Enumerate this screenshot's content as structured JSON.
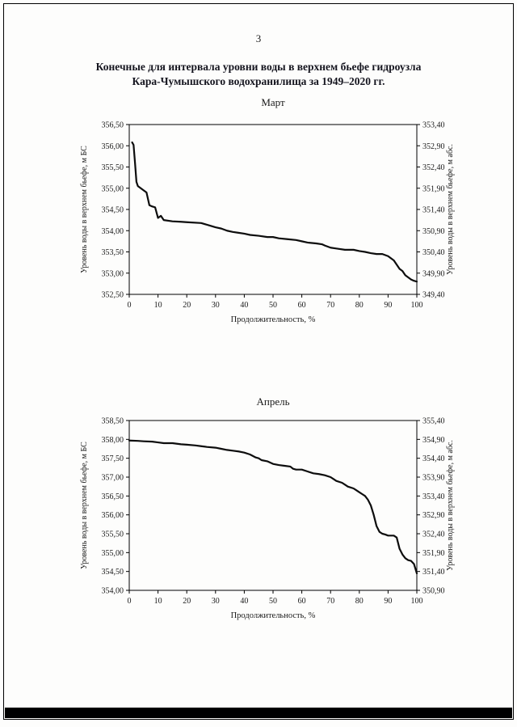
{
  "page": {
    "number": "3",
    "title_line1": "Конечные для интервала уровни воды в верхнем бьефе гидроузла",
    "title_line2": "Кара-Чумышского водохранилища за 1949–2020 гг."
  },
  "chart_data": [
    {
      "type": "line",
      "title": "Март",
      "xlabel": "Продолжительность, %",
      "ylabel_left": "Уровень воды в верхнем бьефе, м БС",
      "ylabel_right": "Уровень воды в верхнем бьефе, м абс.",
      "xlim": [
        0,
        100
      ],
      "xticks": [
        0,
        10,
        20,
        30,
        40,
        50,
        60,
        70,
        80,
        90,
        100
      ],
      "ylim_left": [
        352.5,
        356.5
      ],
      "yticks_left": [
        "356,50",
        "356,00",
        "355,50",
        "355,00",
        "354,50",
        "354,00",
        "353,50",
        "353,00",
        "352,50"
      ],
      "ylim_right": [
        349.4,
        353.4
      ],
      "yticks_right": [
        "353,40",
        "352,90",
        "352,40",
        "351,90",
        "351,40",
        "350,90",
        "350,40",
        "349,90",
        "349,40"
      ],
      "grid": false,
      "legend": "none",
      "line_color": "#0d0d0d",
      "series": [
        {
          "name": "уровень воды в верхнем бьефе",
          "x": [
            1,
            1.5,
            2,
            2.5,
            3,
            4,
            5,
            6,
            7,
            8,
            9,
            10,
            11,
            12,
            15,
            18,
            20,
            25,
            28,
            30,
            32,
            34,
            36,
            38,
            40,
            42,
            45,
            48,
            50,
            52,
            55,
            58,
            60,
            62,
            65,
            67,
            68,
            70,
            72,
            75,
            78,
            80,
            82,
            84,
            86,
            88,
            90,
            91,
            92,
            93,
            94,
            95,
            96,
            97,
            98,
            99,
            100
          ],
          "y": [
            356.08,
            356.02,
            355.6,
            355.15,
            355.05,
            355.0,
            354.95,
            354.9,
            354.6,
            354.57,
            354.55,
            354.3,
            354.35,
            354.25,
            354.22,
            354.21,
            354.2,
            354.18,
            354.12,
            354.08,
            354.05,
            354.0,
            353.97,
            353.95,
            353.93,
            353.9,
            353.88,
            353.85,
            353.85,
            353.82,
            353.8,
            353.78,
            353.75,
            353.72,
            353.7,
            353.68,
            353.65,
            353.6,
            353.58,
            353.55,
            353.55,
            353.52,
            353.5,
            353.47,
            353.45,
            353.45,
            353.4,
            353.35,
            353.3,
            353.2,
            353.1,
            353.05,
            352.95,
            352.9,
            352.85,
            352.82,
            352.8
          ]
        }
      ]
    },
    {
      "type": "line",
      "title": "Апрель",
      "xlabel": "Продолжительность, %",
      "ylabel_left": "Уровень воды в верхнем бьефе, м БС",
      "ylabel_right": "Уровень воды в верхнем бьефе, м абс.",
      "xlim": [
        0,
        100
      ],
      "xticks": [
        0,
        10,
        20,
        30,
        40,
        50,
        60,
        70,
        80,
        90,
        100
      ],
      "ylim_left": [
        354.0,
        358.5
      ],
      "yticks_left": [
        "358,50",
        "358,00",
        "357,50",
        "357,00",
        "356,50",
        "356,00",
        "355,50",
        "355,00",
        "354,50",
        "354,00"
      ],
      "ylim_right": [
        350.9,
        355.4
      ],
      "yticks_right": [
        "355,40",
        "354,90",
        "354,40",
        "353,90",
        "353,40",
        "352,90",
        "352,40",
        "351,90",
        "351,40",
        "350,90"
      ],
      "grid": false,
      "legend": "none",
      "line_color": "#0d0d0d",
      "series": [
        {
          "name": "уровень воды в верхнем бьефе",
          "x": [
            0,
            3,
            5,
            8,
            10,
            12,
            15,
            18,
            20,
            23,
            25,
            27,
            30,
            32,
            34,
            36,
            38,
            40,
            42,
            44,
            45,
            46,
            48,
            50,
            52,
            54,
            56,
            57,
            58,
            60,
            62,
            64,
            66,
            68,
            70,
            71,
            72,
            74,
            75,
            76,
            78,
            79,
            80,
            81,
            82,
            83,
            84,
            85,
            86,
            87,
            88,
            89,
            90,
            92,
            93,
            94,
            95,
            96,
            97,
            98,
            99,
            100
          ],
          "y": [
            357.97,
            357.96,
            357.95,
            357.94,
            357.92,
            357.9,
            357.9,
            357.87,
            357.86,
            357.84,
            357.82,
            357.8,
            357.78,
            357.75,
            357.72,
            357.7,
            357.68,
            357.65,
            357.6,
            357.52,
            357.5,
            357.45,
            357.42,
            357.35,
            357.32,
            357.3,
            357.28,
            357.22,
            357.2,
            357.2,
            357.15,
            357.1,
            357.08,
            357.05,
            357.0,
            356.95,
            356.9,
            356.85,
            356.8,
            356.75,
            356.7,
            356.65,
            356.6,
            356.55,
            356.5,
            356.4,
            356.25,
            356.0,
            355.7,
            355.55,
            355.5,
            355.48,
            355.45,
            355.45,
            355.4,
            355.1,
            354.95,
            354.85,
            354.8,
            354.78,
            354.7,
            354.45
          ]
        }
      ]
    }
  ]
}
